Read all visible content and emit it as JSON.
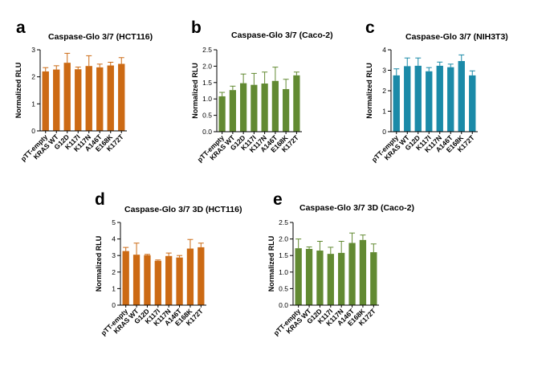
{
  "chart_data": [
    {
      "id": "a",
      "letter": "a",
      "type": "bar",
      "title": "Caspase-Glo 3/7 (HCT116)",
      "ylabel": "Normalized RLU",
      "xlabel": "",
      "ylim": [
        0,
        3
      ],
      "yticks": [
        0,
        1,
        2,
        3
      ],
      "yticklabels": [
        "0",
        "1",
        "2",
        "3"
      ],
      "color": "#cc6a14",
      "categories": [
        "pTT-empty",
        "KRAS WT",
        "G12D",
        "K117I",
        "K117N",
        "A146T",
        "E168K",
        "K172T"
      ],
      "values": [
        2.2,
        2.27,
        2.52,
        2.28,
        2.4,
        2.35,
        2.42,
        2.48
      ],
      "errors": [
        0.14,
        0.14,
        0.35,
        0.08,
        0.38,
        0.12,
        0.12,
        0.23
      ]
    },
    {
      "id": "b",
      "letter": "b",
      "type": "bar",
      "title": "Caspase-Glo 3/7 (Caco-2)",
      "ylabel": "Normalized RLU",
      "xlabel": "",
      "ylim": [
        0,
        2.5
      ],
      "yticks": [
        0,
        0.5,
        1,
        1.5,
        2,
        2.5
      ],
      "yticklabels": [
        "0.0",
        "0.5",
        "1.0",
        "1.5",
        "2.0",
        "2.5"
      ],
      "color": "#628a32",
      "categories": [
        "pTT-empty",
        "KRAS WT",
        "G12D",
        "K117I",
        "K117N",
        "A146T",
        "E168K",
        "K172T"
      ],
      "values": [
        1.08,
        1.27,
        1.48,
        1.43,
        1.47,
        1.55,
        1.3,
        1.72
      ],
      "errors": [
        0.12,
        0.12,
        0.28,
        0.35,
        0.35,
        0.42,
        0.3,
        0.1
      ]
    },
    {
      "id": "c",
      "letter": "c",
      "type": "bar",
      "title": "Caspase-Glo 3/7 (NIH3T3)",
      "ylabel": "Normalized RLU",
      "xlabel": "",
      "ylim": [
        0,
        4
      ],
      "yticks": [
        0,
        1,
        2,
        3,
        4
      ],
      "yticklabels": [
        "0",
        "1",
        "2",
        "3",
        "4"
      ],
      "color": "#1b8aa8",
      "categories": [
        "pTT-empty",
        "KRAS WT",
        "G12D",
        "K117I",
        "K117N",
        "A146T",
        "E168K",
        "K172T"
      ],
      "values": [
        2.75,
        3.2,
        3.22,
        2.95,
        3.22,
        3.15,
        3.45,
        2.75
      ],
      "errors": [
        0.32,
        0.4,
        0.38,
        0.18,
        0.18,
        0.15,
        0.3,
        0.22
      ]
    },
    {
      "id": "d",
      "letter": "d",
      "type": "bar",
      "title": "Caspase-Glo 3/7 3D (HCT116)",
      "ylabel": "Normalized RLU",
      "xlabel": "",
      "ylim": [
        0,
        5
      ],
      "yticks": [
        0,
        1,
        2,
        3,
        4,
        5
      ],
      "yticklabels": [
        "0",
        "1",
        "2",
        "3",
        "4",
        "5"
      ],
      "color": "#cc6a14",
      "categories": [
        "pTT-empty",
        "KRAS WT",
        "G12D",
        "K117I",
        "K117N",
        "A146T",
        "E168K",
        "K172T"
      ],
      "values": [
        3.27,
        3.05,
        3.02,
        2.68,
        2.97,
        2.88,
        3.42,
        3.5
      ],
      "errors": [
        0.22,
        0.7,
        0.05,
        0.05,
        0.18,
        0.12,
        0.55,
        0.25
      ]
    },
    {
      "id": "e",
      "letter": "e",
      "type": "bar",
      "title": "Caspase-Glo 3/7 3D (Caco-2)",
      "ylabel": "Normalized RLU",
      "xlabel": "",
      "ylim": [
        0,
        2.5
      ],
      "yticks": [
        0,
        0.5,
        1,
        1.5,
        2,
        2.5
      ],
      "yticklabels": [
        "0.0",
        "0.5",
        "1.0",
        "1.5",
        "2.0",
        "2.5"
      ],
      "color": "#628a32",
      "categories": [
        "pTT-empty",
        "KRAS WT",
        "G12D",
        "K117I",
        "K117N",
        "A146T",
        "E168K",
        "K172T"
      ],
      "values": [
        1.72,
        1.7,
        1.65,
        1.55,
        1.58,
        1.88,
        1.97,
        1.6
      ],
      "errors": [
        0.28,
        0.06,
        0.28,
        0.2,
        0.35,
        0.3,
        0.15,
        0.25
      ]
    }
  ]
}
